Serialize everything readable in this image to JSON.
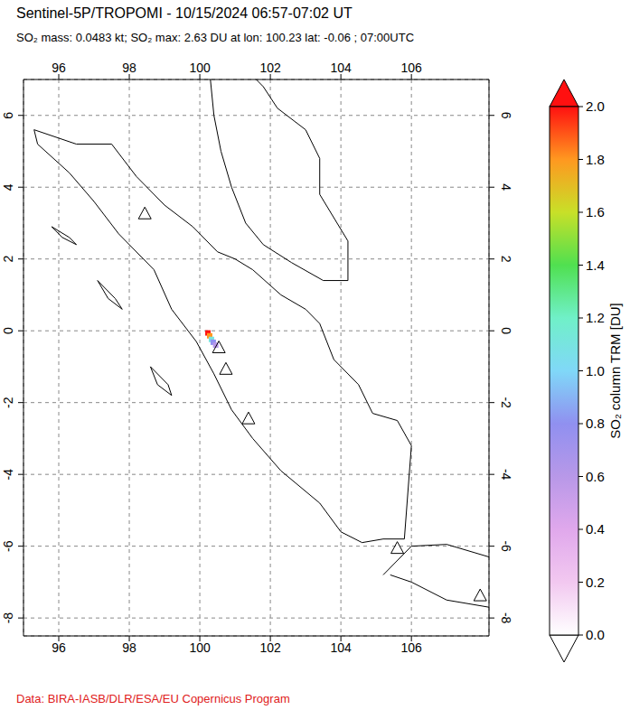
{
  "chart_data": {
    "type": "map",
    "title": "Sentinel-5P/TROPOMI - 10/15/2024 06:57-07:02 UT",
    "subtitle": "SO₂ mass: 0.0483 kt; SO₂ max: 2.63 DU at lon: 100.23 lat: -0.06 ; 07:00UTC",
    "credit": "Data: BIRA-IASB/DLR/ESA/EU Copernicus Program",
    "xlim": [
      95,
      108.2
    ],
    "ylim": [
      -8.5,
      7
    ],
    "xticks": [
      96,
      98,
      100,
      102,
      104,
      106
    ],
    "yticks": [
      -8,
      -6,
      -4,
      -2,
      0,
      2,
      4,
      6
    ],
    "grid": true,
    "so2_pixels": {
      "lon": [
        100.23,
        100.28,
        100.33,
        100.38,
        100.45
      ],
      "lat": [
        -0.06,
        -0.14,
        -0.24,
        -0.32,
        -0.4
      ],
      "values": [
        2.63,
        1.8,
        1.1,
        0.8,
        0.6
      ]
    },
    "volcanoes": {
      "lon": [
        98.44,
        100.54,
        100.74,
        101.38,
        105.6,
        107.95
      ],
      "lat": [
        3.27,
        -0.46,
        -1.06,
        -2.44,
        -6.05,
        -7.37
      ]
    },
    "coastlines": [
      [
        [
          95.3,
          5.6
        ],
        [
          96.5,
          5.2
        ],
        [
          97.5,
          5.2
        ],
        [
          98.2,
          4.3
        ],
        [
          99,
          3.5
        ],
        [
          99.8,
          2.9
        ],
        [
          100.5,
          2.2
        ],
        [
          101,
          2.0
        ],
        [
          101.5,
          1.7
        ],
        [
          102.3,
          1.0
        ],
        [
          103,
          0.6
        ],
        [
          103.4,
          0.2
        ],
        [
          103.8,
          -0.8
        ],
        [
          104.5,
          -1.5
        ],
        [
          104.9,
          -2.3
        ],
        [
          105.6,
          -2.5
        ],
        [
          106,
          -3.2
        ],
        [
          105.9,
          -4.5
        ],
        [
          105.8,
          -5.8
        ],
        [
          105.2,
          -5.8
        ],
        [
          104.6,
          -5.9
        ],
        [
          104,
          -5.6
        ],
        [
          103.4,
          -4.8
        ],
        [
          102.3,
          -3.9
        ],
        [
          101.5,
          -3
        ],
        [
          100.9,
          -2.2
        ],
        [
          100.4,
          -1.2
        ],
        [
          99.9,
          -0.3
        ],
        [
          99.2,
          0.6
        ],
        [
          98.7,
          1.7
        ],
        [
          97.7,
          2.7
        ],
        [
          97,
          3.6
        ],
        [
          96.3,
          4.4
        ],
        [
          95.4,
          5.2
        ],
        [
          95.3,
          5.6
        ]
      ],
      [
        [
          100.3,
          7
        ],
        [
          100.4,
          6
        ],
        [
          100.6,
          5
        ],
        [
          100.9,
          4
        ],
        [
          101.3,
          3
        ],
        [
          101.8,
          2.4
        ],
        [
          102.6,
          1.9
        ],
        [
          103.5,
          1.4
        ],
        [
          104.2,
          1.4
        ],
        [
          104.2,
          2.5
        ],
        [
          103.4,
          3.8
        ],
        [
          103.4,
          4.8
        ],
        [
          103,
          5.6
        ],
        [
          102.2,
          6.2
        ],
        [
          101.8,
          6.8
        ],
        [
          101.6,
          7
        ]
      ],
      [
        [
          105.2,
          -6.8
        ],
        [
          106,
          -6
        ],
        [
          107,
          -5.95
        ],
        [
          108.2,
          -6.3
        ]
      ],
      [
        [
          108.2,
          -7.7
        ],
        [
          107,
          -7.5
        ],
        [
          106,
          -7
        ],
        [
          105.4,
          -6.8
        ]
      ],
      [
        [
          97.1,
          1.4
        ],
        [
          97.6,
          0.9
        ],
        [
          97.8,
          0.6
        ],
        [
          97.4,
          0.9
        ],
        [
          97.1,
          1.4
        ]
      ],
      [
        [
          98.6,
          -1.0
        ],
        [
          99.1,
          -1.5
        ],
        [
          99.2,
          -1.8
        ],
        [
          98.8,
          -1.5
        ],
        [
          98.6,
          -1.0
        ]
      ],
      [
        [
          95.8,
          2.9
        ],
        [
          96.3,
          2.6
        ],
        [
          96.5,
          2.4
        ],
        [
          96.1,
          2.6
        ],
        [
          95.8,
          2.9
        ]
      ]
    ],
    "colorbar": {
      "label": "SO₂ column TRM [DU]",
      "range": [
        0,
        2
      ],
      "ticks": [
        {
          "value": 0,
          "label": "0.0"
        },
        {
          "value": 0.2,
          "label": "0.2"
        },
        {
          "value": 0.4,
          "label": "0.4"
        },
        {
          "value": 0.6,
          "label": "0.6"
        },
        {
          "value": 0.8,
          "label": "0.8"
        },
        {
          "value": 1.0,
          "label": "1.0"
        },
        {
          "value": 1.2,
          "label": "1.2"
        },
        {
          "value": 1.4,
          "label": "1.4"
        },
        {
          "value": 1.6,
          "label": "1.6"
        },
        {
          "value": 1.8,
          "label": "1.8"
        },
        {
          "value": 2.0,
          "label": "2.0"
        }
      ],
      "colors": [
        "#ffffff",
        "#f2c8f0",
        "#e0a8ec",
        "#b898e8",
        "#9090f0",
        "#80d8f8",
        "#70f0c8",
        "#50e050",
        "#c8e028",
        "#ff9820",
        "#ff1010"
      ]
    }
  }
}
